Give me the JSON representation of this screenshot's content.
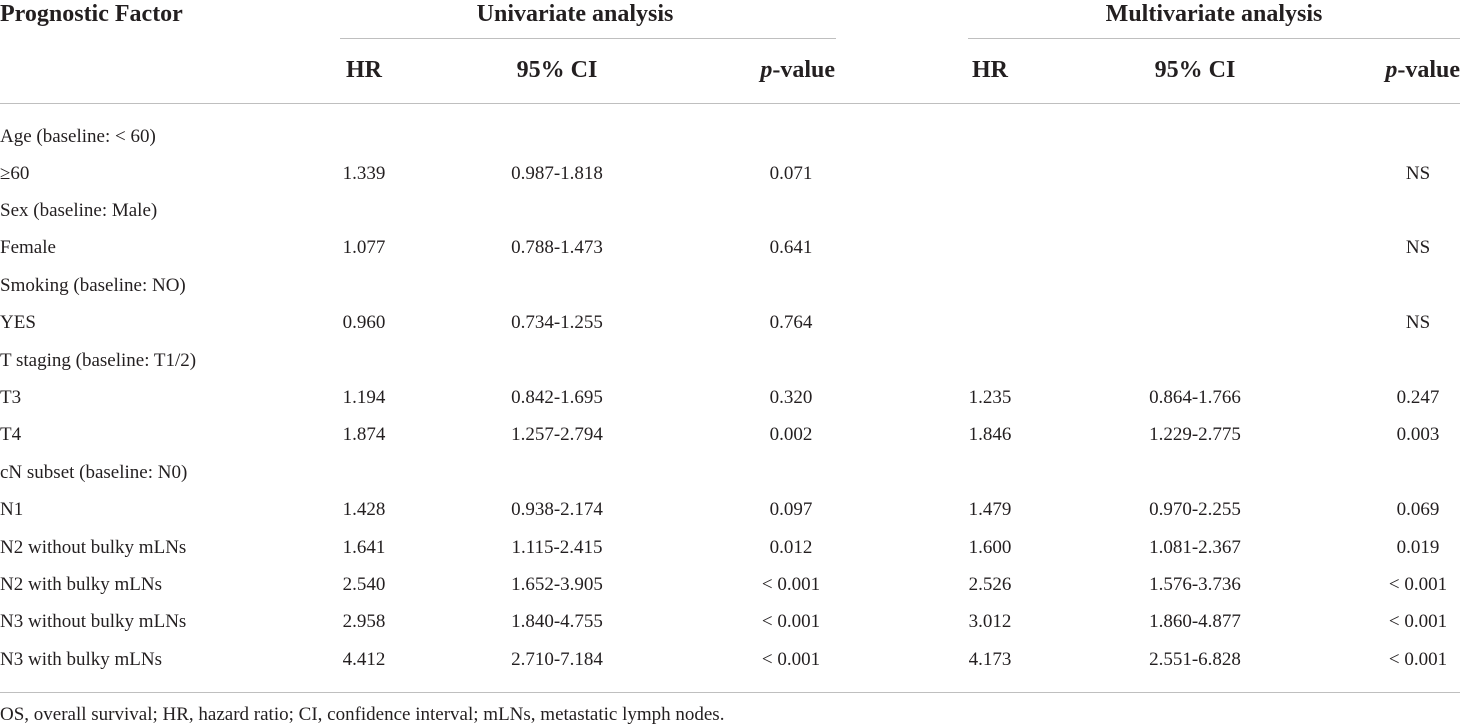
{
  "header": {
    "factor": "Prognostic Factor",
    "univariate": "Univariate analysis",
    "multivariate": "Multivariate analysis",
    "hr": "HR",
    "ci": "95% CI",
    "p_italic": "p",
    "p_rest": "-value"
  },
  "rows": [
    {
      "label": "Age (baseline: < 60)",
      "u_hr": "",
      "u_ci": "",
      "u_p": "",
      "m_hr": "",
      "m_ci": "",
      "m_p": ""
    },
    {
      "label": "≥60",
      "u_hr": "1.339",
      "u_ci": "0.987-1.818",
      "u_p": "0.071",
      "m_hr": "",
      "m_ci": "",
      "m_p": "NS"
    },
    {
      "label": "Sex (baseline: Male)",
      "u_hr": "",
      "u_ci": "",
      "u_p": "",
      "m_hr": "",
      "m_ci": "",
      "m_p": ""
    },
    {
      "label": "Female",
      "u_hr": "1.077",
      "u_ci": "0.788-1.473",
      "u_p": "0.641",
      "m_hr": "",
      "m_ci": "",
      "m_p": "NS"
    },
    {
      "label": "Smoking (baseline: NO)",
      "u_hr": "",
      "u_ci": "",
      "u_p": "",
      "m_hr": "",
      "m_ci": "",
      "m_p": ""
    },
    {
      "label": "YES",
      "u_hr": "0.960",
      "u_ci": "0.734-1.255",
      "u_p": "0.764",
      "m_hr": "",
      "m_ci": "",
      "m_p": "NS"
    },
    {
      "label": "T staging (baseline: T1/2)",
      "u_hr": "",
      "u_ci": "",
      "u_p": "",
      "m_hr": "",
      "m_ci": "",
      "m_p": ""
    },
    {
      "label": "T3",
      "u_hr": "1.194",
      "u_ci": "0.842-1.695",
      "u_p": "0.320",
      "m_hr": "1.235",
      "m_ci": "0.864-1.766",
      "m_p": "0.247"
    },
    {
      "label": "T4",
      "u_hr": "1.874",
      "u_ci": "1.257-2.794",
      "u_p": "0.002",
      "m_hr": "1.846",
      "m_ci": "1.229-2.775",
      "m_p": "0.003"
    },
    {
      "label": "cN subset (baseline: N0)",
      "u_hr": "",
      "u_ci": "",
      "u_p": "",
      "m_hr": "",
      "m_ci": "",
      "m_p": ""
    },
    {
      "label": "N1",
      "u_hr": "1.428",
      "u_ci": "0.938-2.174",
      "u_p": "0.097",
      "m_hr": "1.479",
      "m_ci": "0.970-2.255",
      "m_p": "0.069"
    },
    {
      "label": "N2 without bulky mLNs",
      "u_hr": "1.641",
      "u_ci": "1.115-2.415",
      "u_p": "0.012",
      "m_hr": "1.600",
      "m_ci": "1.081-2.367",
      "m_p": "0.019"
    },
    {
      "label": "N2 with bulky mLNs",
      "u_hr": "2.540",
      "u_ci": "1.652-3.905",
      "u_p": "< 0.001",
      "m_hr": "2.526",
      "m_ci": "1.576-3.736",
      "m_p": "< 0.001"
    },
    {
      "label": "N3 without bulky mLNs",
      "u_hr": "2.958",
      "u_ci": "1.840-4.755",
      "u_p": "< 0.001",
      "m_hr": "3.012",
      "m_ci": "1.860-4.877",
      "m_p": "< 0.001"
    },
    {
      "label": "N3 with bulky mLNs",
      "u_hr": "4.412",
      "u_ci": "2.710-7.184",
      "u_p": "< 0.001",
      "m_hr": "4.173",
      "m_ci": "2.551-6.828",
      "m_p": "< 0.001"
    }
  ],
  "footnote": "OS, overall survival; HR, hazard ratio; CI, confidence interval; mLNs, metastatic lymph nodes."
}
